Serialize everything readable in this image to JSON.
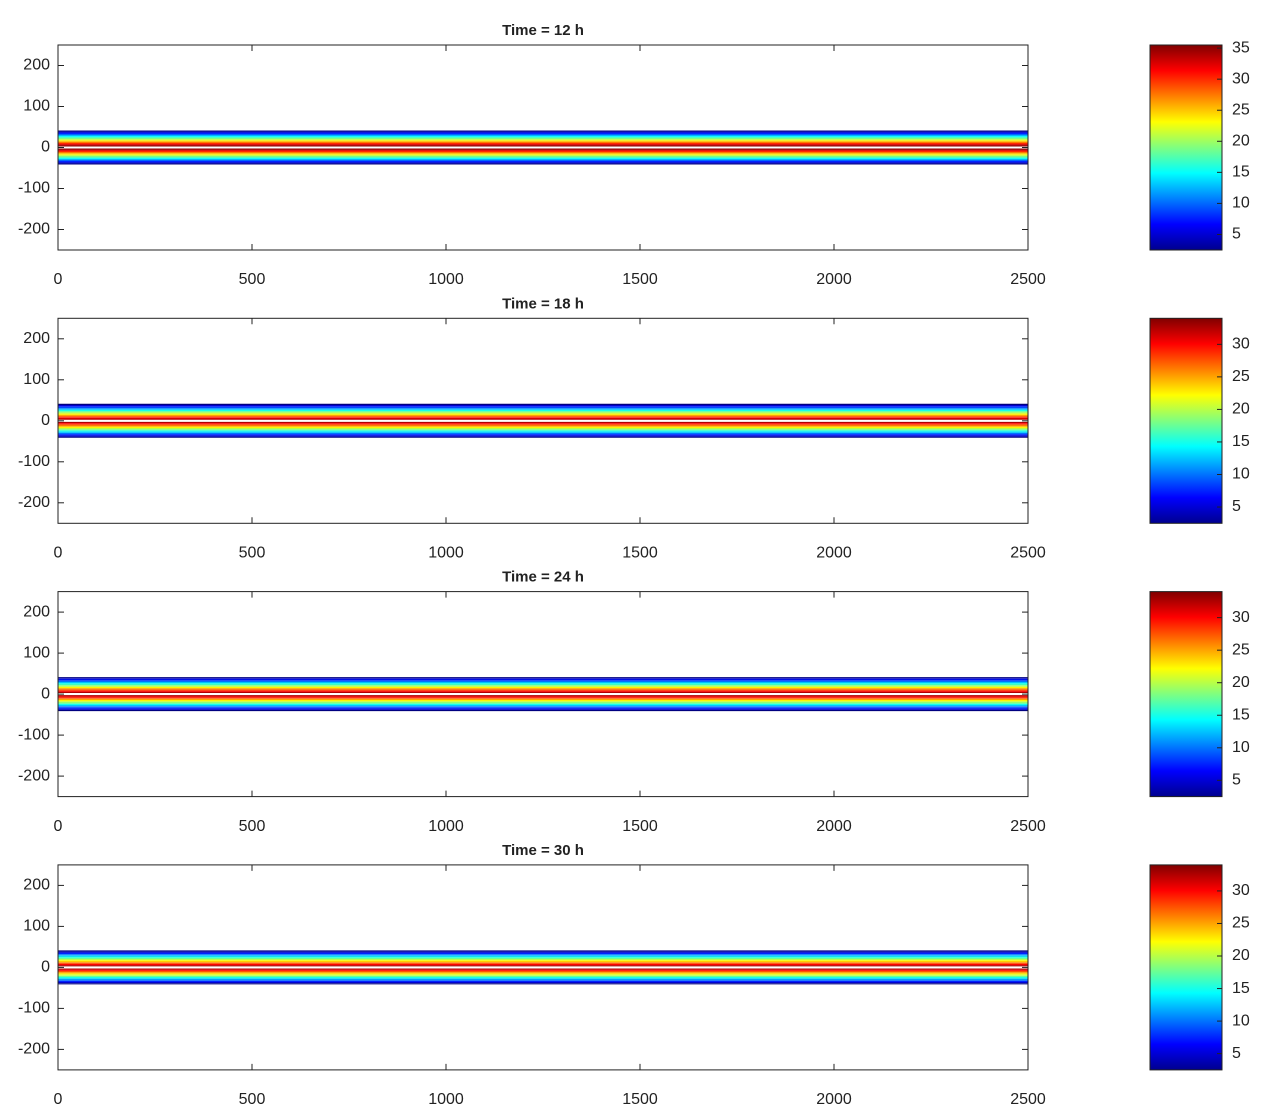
{
  "chart_data": [
    {
      "type": "contour",
      "title": "Time = 12 h",
      "colormap": "jet",
      "xlim": [
        0,
        2500
      ],
      "xticks": [
        0,
        500,
        1000,
        1500,
        2000,
        2500
      ],
      "ylim": [
        -250,
        250
      ],
      "yticks": [
        -200,
        -100,
        0,
        100,
        200
      ],
      "levels": [
        2.5,
        5,
        7.5,
        10,
        12.5,
        15,
        17.5,
        20,
        22.5,
        25,
        27.5,
        30,
        32.5,
        35
      ],
      "clim": [
        2.5,
        35.5
      ],
      "cticks": [
        5,
        10,
        15,
        20,
        25,
        30,
        35
      ]
    },
    {
      "type": "contour",
      "title": "Time = 18 h",
      "colormap": "jet",
      "xlim": [
        0,
        2500
      ],
      "xticks": [
        0,
        500,
        1000,
        1500,
        2000,
        2500
      ],
      "ylim": [
        -250,
        250
      ],
      "yticks": [
        -200,
        -100,
        0,
        100,
        200
      ],
      "levels": [
        2.5,
        5,
        7.5,
        10,
        12.5,
        15,
        17.5,
        20,
        22.5,
        25,
        27.5,
        30,
        32.5
      ],
      "clim": [
        2.5,
        34
      ],
      "cticks": [
        5,
        10,
        15,
        20,
        25,
        30
      ]
    },
    {
      "type": "contour",
      "title": "Time = 24 h",
      "colormap": "jet",
      "xlim": [
        0,
        2500
      ],
      "xticks": [
        0,
        500,
        1000,
        1500,
        2000,
        2500
      ],
      "ylim": [
        -250,
        250
      ],
      "yticks": [
        -200,
        -100,
        0,
        100,
        200
      ],
      "levels": [
        2.5,
        5,
        7.5,
        10,
        12.5,
        15,
        17.5,
        20,
        22.5,
        25,
        27.5,
        30,
        32.5
      ],
      "clim": [
        2.5,
        34
      ],
      "cticks": [
        5,
        10,
        15,
        20,
        25,
        30
      ]
    },
    {
      "type": "contour",
      "title": "Time = 30 h",
      "colormap": "jet",
      "xlim": [
        0,
        2500
      ],
      "xticks": [
        0,
        500,
        1000,
        1500,
        2000,
        2500
      ],
      "ylim": [
        -250,
        250
      ],
      "yticks": [
        -200,
        -100,
        0,
        100,
        200
      ],
      "levels": [
        2.5,
        5,
        7.5,
        10,
        12.5,
        15,
        17.5,
        20,
        22.5,
        25,
        27.5,
        30,
        32.5
      ],
      "clim": [
        2.5,
        34
      ],
      "cticks": [
        5,
        10,
        15,
        20,
        25,
        30
      ]
    }
  ]
}
